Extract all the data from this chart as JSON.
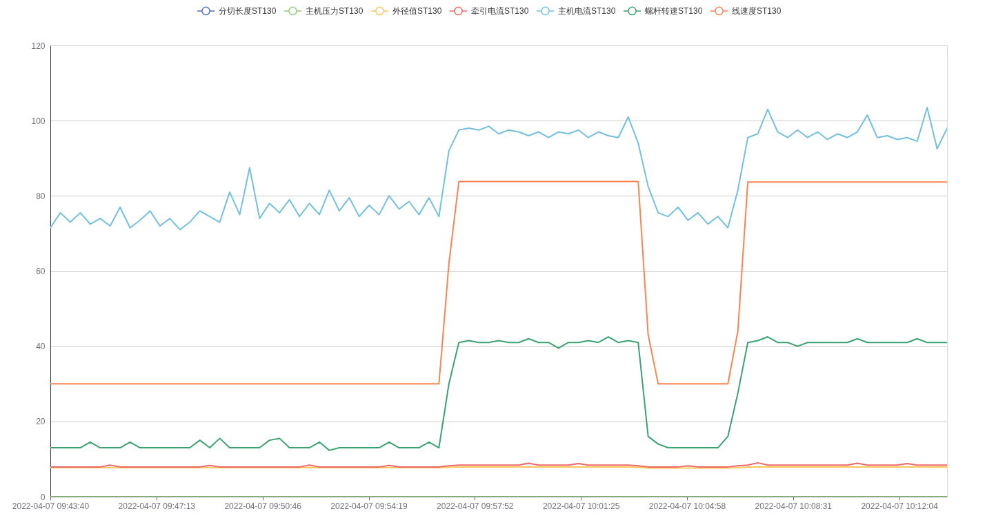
{
  "chart_data": {
    "type": "line",
    "x": [
      "2022-04-07T09:43:40",
      "2022-04-07T09:44:00",
      "2022-04-07T09:44:20",
      "2022-04-07T09:44:40",
      "2022-04-07T09:45:00",
      "2022-04-07T09:45:20",
      "2022-04-07T09:45:40",
      "2022-04-07T09:46:00",
      "2022-04-07T09:46:20",
      "2022-04-07T09:46:40",
      "2022-04-07T09:47:00",
      "2022-04-07T09:47:20",
      "2022-04-07T09:47:40",
      "2022-04-07T09:48:00",
      "2022-04-07T09:48:20",
      "2022-04-07T09:48:40",
      "2022-04-07T09:49:00",
      "2022-04-07T09:49:20",
      "2022-04-07T09:49:40",
      "2022-04-07T09:50:00",
      "2022-04-07T09:50:20",
      "2022-04-07T09:50:40",
      "2022-04-07T09:51:00",
      "2022-04-07T09:51:20",
      "2022-04-07T09:51:40",
      "2022-04-07T09:52:00",
      "2022-04-07T09:52:20",
      "2022-04-07T09:52:40",
      "2022-04-07T09:53:00",
      "2022-04-07T09:53:20",
      "2022-04-07T09:53:40",
      "2022-04-07T09:54:00",
      "2022-04-07T09:54:20",
      "2022-04-07T09:54:40",
      "2022-04-07T09:55:00",
      "2022-04-07T09:55:20",
      "2022-04-07T09:55:40",
      "2022-04-07T09:56:00",
      "2022-04-07T09:56:20",
      "2022-04-07T09:56:40",
      "2022-04-07T09:57:00",
      "2022-04-07T09:57:20",
      "2022-04-07T09:57:40",
      "2022-04-07T09:58:00",
      "2022-04-07T09:58:20",
      "2022-04-07T09:58:40",
      "2022-04-07T09:59:00",
      "2022-04-07T09:59:20",
      "2022-04-07T09:59:40",
      "2022-04-07T10:00:00",
      "2022-04-07T10:00:20",
      "2022-04-07T10:00:40",
      "2022-04-07T10:01:00",
      "2022-04-07T10:01:20",
      "2022-04-07T10:01:40",
      "2022-04-07T10:02:00",
      "2022-04-07T10:02:20",
      "2022-04-07T10:02:40",
      "2022-04-07T10:03:00",
      "2022-04-07T10:03:20",
      "2022-04-07T10:03:40",
      "2022-04-07T10:04:00",
      "2022-04-07T10:04:20",
      "2022-04-07T10:04:40",
      "2022-04-07T10:05:00",
      "2022-04-07T10:05:20",
      "2022-04-07T10:05:40",
      "2022-04-07T10:06:00",
      "2022-04-07T10:06:20",
      "2022-04-07T10:06:40",
      "2022-04-07T10:07:00",
      "2022-04-07T10:07:20",
      "2022-04-07T10:07:40",
      "2022-04-07T10:08:00",
      "2022-04-07T10:08:20",
      "2022-04-07T10:08:40",
      "2022-04-07T10:09:00",
      "2022-04-07T10:09:20",
      "2022-04-07T10:09:40",
      "2022-04-07T10:10:00",
      "2022-04-07T10:10:20",
      "2022-04-07T10:10:40",
      "2022-04-07T10:11:00",
      "2022-04-07T10:11:20",
      "2022-04-07T10:11:40",
      "2022-04-07T10:12:00",
      "2022-04-07T10:12:20",
      "2022-04-07T10:12:40",
      "2022-04-07T10:13:00",
      "2022-04-07T10:13:20",
      "2022-04-07T10:13:40"
    ],
    "xlim": [
      "2022-04-07T09:43:40",
      "2022-04-07T10:13:40"
    ],
    "xticks": [
      {
        "value": "2022-04-07T09:43:40",
        "label": "2022-04-07 09:43:40"
      },
      {
        "value": "2022-04-07T09:47:13",
        "label": "2022-04-07 09:47:13"
      },
      {
        "value": "2022-04-07T09:50:46",
        "label": "2022-04-07 09:50:46"
      },
      {
        "value": "2022-04-07T09:54:19",
        "label": "2022-04-07 09:54:19"
      },
      {
        "value": "2022-04-07T09:57:52",
        "label": "2022-04-07 09:57:52"
      },
      {
        "value": "2022-04-07T10:01:25",
        "label": "2022-04-07 10:01:25"
      },
      {
        "value": "2022-04-07T10:04:58",
        "label": "2022-04-07 10:04:58"
      },
      {
        "value": "2022-04-07T10:08:31",
        "label": "2022-04-07 10:08:31"
      },
      {
        "value": "2022-04-07T10:12:04",
        "label": "2022-04-07 10:12:04"
      }
    ],
    "ylim": [
      0,
      120
    ],
    "yticks": [
      0,
      20,
      40,
      60,
      80,
      100,
      120
    ],
    "grid": "y",
    "legend": "top",
    "line_style": "solid",
    "marker": "none",
    "series": [
      {
        "name": "分切长度ST130",
        "color": "#5470c6",
        "values": [
          null,
          null,
          null,
          null,
          null,
          null,
          null,
          null,
          null,
          null,
          null,
          null,
          null,
          null,
          null,
          null,
          null,
          null,
          null,
          null,
          null,
          null,
          null,
          null,
          null,
          null,
          null,
          null,
          null,
          null,
          null,
          null,
          null,
          null,
          null,
          null,
          null,
          null,
          null,
          null,
          null,
          null,
          null,
          null,
          null,
          null,
          null,
          null,
          null,
          null,
          null,
          null,
          null,
          null,
          null,
          null,
          null,
          null,
          null,
          null,
          null,
          null,
          null,
          null,
          null,
          null,
          null,
          null,
          null,
          null,
          null,
          null,
          null,
          null,
          null,
          null,
          null,
          null,
          null,
          null,
          null,
          null,
          null,
          null,
          null,
          null,
          null,
          null,
          null,
          null,
          null
        ]
      },
      {
        "name": "主机压力ST130",
        "color": "#91cc75",
        "values": [
          0,
          0,
          0,
          0,
          0,
          0,
          0,
          0,
          0,
          0,
          0,
          0,
          0,
          0,
          0,
          0,
          0,
          0,
          0,
          0,
          0,
          0,
          0,
          0,
          0,
          0,
          0,
          0,
          0,
          0,
          0,
          0,
          0,
          0,
          0,
          0,
          0,
          0,
          0,
          0,
          0,
          0,
          0,
          0,
          0,
          0,
          0,
          0,
          0,
          0,
          0,
          0,
          0,
          0,
          0,
          0,
          0,
          0,
          0,
          0,
          0,
          0,
          0,
          0,
          0,
          0,
          0,
          0,
          0,
          0,
          0,
          0,
          0,
          0,
          0,
          0,
          0,
          0,
          0,
          0,
          0,
          0,
          0,
          0,
          0,
          0,
          0,
          0,
          0,
          0,
          0
        ]
      },
      {
        "name": "外径值ST130",
        "color": "#fac858",
        "values": [
          7.7,
          7.7,
          7.7,
          7.7,
          7.7,
          7.7,
          7.7,
          7.7,
          7.7,
          7.7,
          7.7,
          7.7,
          7.7,
          7.7,
          7.7,
          7.7,
          7.7,
          7.7,
          7.7,
          7.7,
          7.7,
          7.7,
          7.7,
          7.7,
          7.7,
          7.7,
          7.7,
          7.7,
          7.7,
          7.7,
          7.7,
          7.7,
          7.7,
          7.7,
          7.7,
          7.7,
          7.7,
          7.7,
          7.7,
          7.7,
          7.8,
          7.9,
          7.9,
          7.9,
          7.9,
          7.9,
          7.9,
          7.9,
          7.9,
          7.9,
          7.9,
          7.9,
          7.9,
          7.9,
          7.9,
          7.9,
          7.9,
          7.9,
          7.9,
          7.8,
          7.6,
          7.6,
          7.6,
          7.6,
          7.6,
          7.6,
          7.6,
          7.6,
          7.6,
          7.7,
          7.9,
          7.9,
          7.9,
          7.9,
          7.9,
          7.9,
          7.9,
          7.9,
          7.9,
          7.9,
          7.9,
          7.9,
          7.9,
          7.9,
          7.9,
          7.9,
          7.9,
          7.9,
          7.9,
          7.9,
          7.9
        ]
      },
      {
        "name": "牵引电流ST130",
        "color": "#ee6666",
        "values": [
          7.9,
          7.9,
          7.9,
          7.9,
          7.9,
          7.9,
          8.4,
          7.9,
          7.9,
          7.9,
          7.9,
          7.9,
          7.9,
          7.9,
          7.9,
          7.9,
          8.3,
          7.9,
          7.9,
          7.9,
          7.9,
          7.9,
          7.9,
          7.9,
          7.9,
          7.9,
          8.4,
          7.9,
          7.9,
          7.9,
          7.9,
          7.9,
          7.9,
          7.9,
          8.3,
          7.9,
          7.9,
          7.9,
          7.9,
          7.9,
          8.2,
          8.4,
          8.4,
          8.4,
          8.4,
          8.4,
          8.4,
          8.4,
          8.9,
          8.4,
          8.4,
          8.4,
          8.4,
          8.8,
          8.4,
          8.4,
          8.4,
          8.4,
          8.4,
          8.2,
          7.9,
          7.9,
          7.9,
          7.9,
          8.2,
          7.9,
          7.9,
          7.9,
          7.9,
          8.2,
          8.4,
          9,
          8.4,
          8.4,
          8.4,
          8.4,
          8.4,
          8.4,
          8.4,
          8.4,
          8.4,
          8.9,
          8.4,
          8.4,
          8.4,
          8.4,
          8.8,
          8.4,
          8.4,
          8.4,
          8.4
        ]
      },
      {
        "name": "主机电流ST130",
        "color": "#73c0de",
        "values": [
          71.5,
          75.5,
          73,
          75.5,
          72.5,
          74,
          72,
          77,
          71.5,
          73.5,
          76,
          72,
          74,
          71,
          73,
          76,
          74.5,
          73,
          81,
          75,
          87.5,
          74,
          78,
          75.5,
          79,
          74.5,
          78,
          75,
          81.5,
          76,
          79.5,
          74.5,
          77.5,
          75,
          80,
          76.5,
          78.5,
          75,
          79.5,
          74.5,
          92,
          97.5,
          98,
          97.5,
          98.5,
          96.5,
          97.5,
          97,
          96,
          97,
          95.5,
          97,
          96.5,
          97.5,
          95.5,
          97,
          96,
          95.5,
          101,
          94,
          82.5,
          75.5,
          74.5,
          77,
          73.5,
          75.5,
          72.5,
          74.5,
          71.5,
          81.5,
          95.5,
          96.5,
          103,
          97,
          95.5,
          97.5,
          95.5,
          97,
          95,
          96.5,
          95.5,
          97,
          101.5,
          95.5,
          96,
          95,
          95.5,
          94.5,
          103.5,
          92.5,
          98
        ]
      },
      {
        "name": "螺杆转速ST130",
        "color": "#3ba272",
        "values": [
          13,
          13,
          13,
          13,
          14.5,
          13,
          13,
          13,
          14.5,
          13,
          13,
          13,
          13,
          13,
          13,
          15,
          13,
          15.5,
          13,
          13,
          13,
          13,
          15,
          15.5,
          13,
          13,
          13,
          14.5,
          12.3,
          13,
          13,
          13,
          13,
          13,
          14.5,
          13,
          13,
          13,
          14.5,
          13,
          30,
          41,
          41.5,
          41,
          41,
          41.5,
          41,
          41,
          42,
          41,
          41,
          39.5,
          41,
          41,
          41.5,
          41,
          42.5,
          41,
          41.5,
          41,
          16,
          14,
          13,
          13,
          13,
          13,
          13,
          13,
          16,
          27.5,
          41,
          41.5,
          42.5,
          41,
          41,
          40,
          41,
          41,
          41,
          41,
          41,
          42,
          41,
          41,
          41,
          41,
          41,
          42,
          41,
          41,
          41
        ]
      },
      {
        "name": "线速度ST130",
        "color": "#fc8452",
        "values": [
          30,
          30,
          30,
          30,
          30,
          30,
          30,
          30,
          30,
          30,
          30,
          30,
          30,
          30,
          30,
          30,
          30,
          30,
          30,
          30,
          30,
          30,
          30,
          30,
          30,
          30,
          30,
          30,
          30,
          30,
          30,
          30,
          30,
          30,
          30,
          30,
          30,
          30,
          30,
          30,
          62,
          83.8,
          83.8,
          83.8,
          83.8,
          83.8,
          83.8,
          83.8,
          83.8,
          83.8,
          83.8,
          83.8,
          83.8,
          83.8,
          83.8,
          83.8,
          83.8,
          83.8,
          83.8,
          83.8,
          43,
          30,
          30,
          30,
          30,
          30,
          30,
          30,
          30,
          44,
          83.7,
          83.7,
          83.7,
          83.7,
          83.7,
          83.7,
          83.7,
          83.7,
          83.7,
          83.7,
          83.7,
          83.7,
          83.7,
          83.7,
          83.7,
          83.7,
          83.7,
          83.7,
          83.7,
          83.7,
          83.7
        ]
      }
    ]
  }
}
